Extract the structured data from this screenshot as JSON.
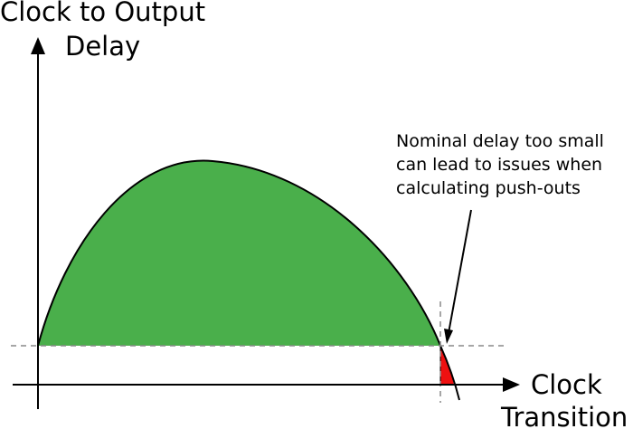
{
  "y_axis": {
    "label_line1": "Clock to Output",
    "label_line2": "Delay"
  },
  "x_axis": {
    "label_line1": "Clock",
    "label_line2": "Transition"
  },
  "annotation": {
    "line1": "Nominal delay too small",
    "line2": "can lead to issues when",
    "line3": "calculating push-outs"
  },
  "colors": {
    "curve_fill": "#4aaf4b",
    "problem_region_fill": "#ee1111",
    "guide_line": "#888888",
    "axis": "#000000"
  }
}
